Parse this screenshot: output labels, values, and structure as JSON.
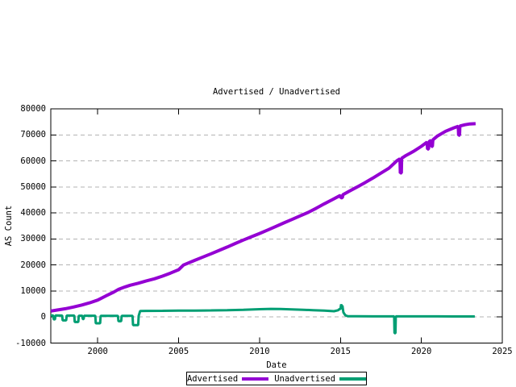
{
  "chart_data": {
    "type": "line",
    "title": "Advertised / Unadvertised",
    "xlabel": "Date",
    "ylabel": "AS Count",
    "xlim": [
      1997.1,
      2025
    ],
    "ylim": [
      -10000,
      80000
    ],
    "xticks": [
      2000,
      2005,
      2010,
      2015,
      2020,
      2025
    ],
    "yticks": [
      -10000,
      0,
      10000,
      20000,
      30000,
      40000,
      50000,
      60000,
      70000,
      80000
    ],
    "grid": {
      "horizontal": true,
      "vertical": false,
      "style": "dashed",
      "color": "#b3b3b3"
    },
    "axis_color": "#000000",
    "background_color": "#ffffff",
    "legend": {
      "position": "bottom-center",
      "border": true
    },
    "series": [
      {
        "name": "Advertised",
        "color": "#9400d3",
        "width": 4,
        "points": [
          [
            1997.1,
            2300
          ],
          [
            1997.5,
            2700
          ],
          [
            1998,
            3200
          ],
          [
            1998.5,
            3850
          ],
          [
            1999,
            4600
          ],
          [
            1999.5,
            5450
          ],
          [
            2000,
            6500
          ],
          [
            2000.5,
            8100
          ],
          [
            2001,
            9600
          ],
          [
            2001.3,
            10700
          ],
          [
            2001.7,
            11600
          ],
          [
            2002,
            12200
          ],
          [
            2002.5,
            13000
          ],
          [
            2003,
            13900
          ],
          [
            2003.5,
            14700
          ],
          [
            2004,
            15700
          ],
          [
            2004.5,
            16900
          ],
          [
            2005,
            18200
          ],
          [
            2005.3,
            20000
          ],
          [
            2006,
            21800
          ],
          [
            2006.5,
            23050
          ],
          [
            2007,
            24300
          ],
          [
            2007.5,
            25600
          ],
          [
            2008,
            26900
          ],
          [
            2008.5,
            28250
          ],
          [
            2009,
            29600
          ],
          [
            2009.5,
            30850
          ],
          [
            2010,
            32100
          ],
          [
            2010.5,
            33450
          ],
          [
            2011,
            34800
          ],
          [
            2011.5,
            36150
          ],
          [
            2012,
            37500
          ],
          [
            2012.5,
            38850
          ],
          [
            2013,
            40200
          ],
          [
            2013.5,
            41800
          ],
          [
            2014,
            43500
          ],
          [
            2014.5,
            45100
          ],
          [
            2014.95,
            46600
          ],
          [
            2015.0,
            46700
          ],
          [
            2015.02,
            45800
          ],
          [
            2015.12,
            45900
          ],
          [
            2015.15,
            47000
          ],
          [
            2015.5,
            48200
          ],
          [
            2016,
            49900
          ],
          [
            2016.5,
            51600
          ],
          [
            2017,
            53400
          ],
          [
            2017.5,
            55300
          ],
          [
            2018,
            57200
          ],
          [
            2018.5,
            60100
          ],
          [
            2018.68,
            60800
          ],
          [
            2018.7,
            55300
          ],
          [
            2018.76,
            55400
          ],
          [
            2018.78,
            61000
          ],
          [
            2019,
            61900
          ],
          [
            2019.5,
            63600
          ],
          [
            2020,
            65600
          ],
          [
            2020.35,
            67200
          ],
          [
            2020.38,
            64500
          ],
          [
            2020.44,
            64600
          ],
          [
            2020.47,
            67400
          ],
          [
            2020.6,
            67900
          ],
          [
            2020.63,
            65500
          ],
          [
            2020.68,
            65600
          ],
          [
            2020.71,
            68100
          ],
          [
            2021,
            69600
          ],
          [
            2021.5,
            71400
          ],
          [
            2022,
            72700
          ],
          [
            2022.28,
            73300
          ],
          [
            2022.3,
            69800
          ],
          [
            2022.36,
            69900
          ],
          [
            2022.38,
            73400
          ],
          [
            2022.7,
            73900
          ],
          [
            2023,
            74200
          ],
          [
            2023.35,
            74300
          ]
        ]
      },
      {
        "name": "Unadvertised",
        "color": "#009e73",
        "width": 3,
        "points": [
          [
            1997.1,
            600
          ],
          [
            1997.25,
            600
          ],
          [
            1997.28,
            -900
          ],
          [
            1997.36,
            -900
          ],
          [
            1997.39,
            600
          ],
          [
            1997.8,
            550
          ],
          [
            1997.83,
            -1300
          ],
          [
            1998.05,
            -1300
          ],
          [
            1998.08,
            550
          ],
          [
            1998.55,
            550
          ],
          [
            1998.58,
            -1900
          ],
          [
            1998.8,
            -1900
          ],
          [
            1998.83,
            500
          ],
          [
            1999.05,
            500
          ],
          [
            1999.08,
            -800
          ],
          [
            1999.13,
            -800
          ],
          [
            1999.16,
            500
          ],
          [
            1999.85,
            500
          ],
          [
            1999.88,
            -2400
          ],
          [
            2000.15,
            -2400
          ],
          [
            2000.18,
            450
          ],
          [
            2001.25,
            450
          ],
          [
            2001.28,
            -1600
          ],
          [
            2001.45,
            -1600
          ],
          [
            2001.48,
            450
          ],
          [
            2002.15,
            450
          ],
          [
            2002.18,
            -3100
          ],
          [
            2002.5,
            -3100
          ],
          [
            2002.53,
            450
          ],
          [
            2002.62,
            2300
          ],
          [
            2003,
            2350
          ],
          [
            2004,
            2400
          ],
          [
            2005,
            2450
          ],
          [
            2006,
            2500
          ],
          [
            2007,
            2550
          ],
          [
            2008,
            2650
          ],
          [
            2009,
            2800
          ],
          [
            2010,
            3000
          ],
          [
            2010.7,
            3150
          ],
          [
            2011.3,
            3100
          ],
          [
            2012,
            2950
          ],
          [
            2012.7,
            2800
          ],
          [
            2013.3,
            2650
          ],
          [
            2014,
            2450
          ],
          [
            2014.6,
            2250
          ],
          [
            2014.85,
            2600
          ],
          [
            2014.95,
            3100
          ],
          [
            2015.0,
            3000
          ],
          [
            2015.04,
            4900
          ],
          [
            2015.08,
            4100
          ],
          [
            2015.12,
            4400
          ],
          [
            2015.18,
            1800
          ],
          [
            2015.3,
            700
          ],
          [
            2015.45,
            300
          ],
          [
            2016,
            280
          ],
          [
            2017,
            270
          ],
          [
            2018,
            260
          ],
          [
            2018.32,
            260
          ],
          [
            2018.34,
            -6200
          ],
          [
            2018.4,
            -6200
          ],
          [
            2018.42,
            260
          ],
          [
            2019,
            250
          ],
          [
            2020,
            250
          ],
          [
            2021,
            240
          ],
          [
            2022,
            230
          ],
          [
            2023.3,
            220
          ]
        ]
      }
    ]
  }
}
